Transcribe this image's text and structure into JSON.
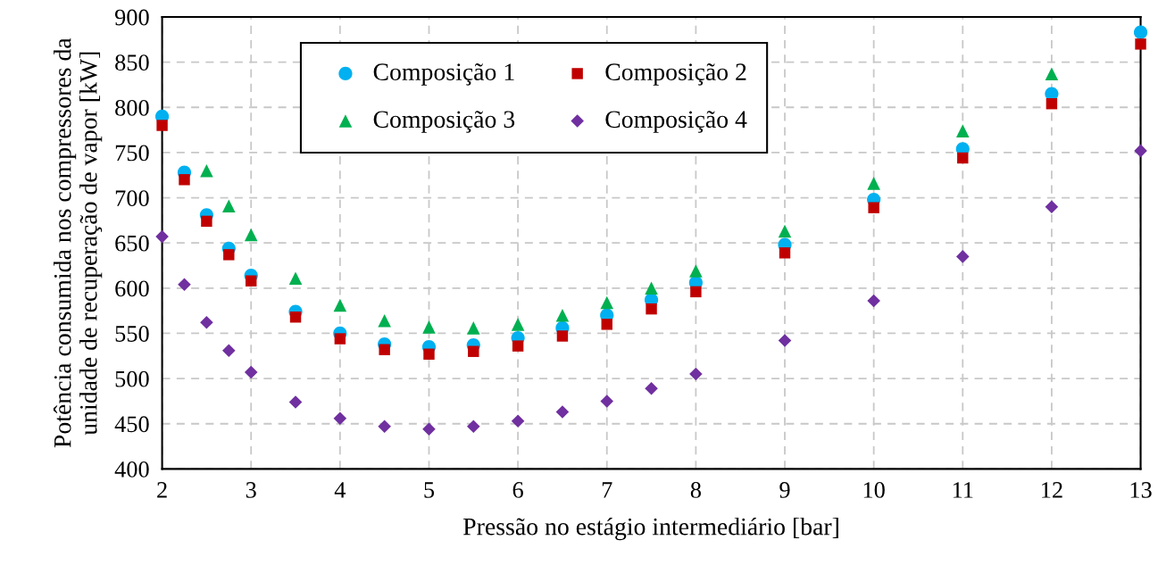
{
  "chart_data": {
    "type": "scatter",
    "xlabel": "Pressão no estágio intermediário [bar]",
    "ylabel": "Potência consumida nos compressores da\nunidade de recuperação de vapor [kW]",
    "x": [
      2,
      2.25,
      2.5,
      2.75,
      3,
      3.5,
      4,
      4.5,
      5,
      5.5,
      6,
      6.5,
      7,
      7.5,
      8,
      9,
      10,
      11,
      12,
      13
    ],
    "series": [
      {
        "name": "Composição 1",
        "color": "#00b0f0",
        "marker": "circle",
        "values": [
          790,
          728,
          681,
          644,
          614,
          574,
          550,
          538,
          535,
          537,
          545,
          556,
          570,
          587,
          606,
          648,
          698,
          754,
          815,
          883
        ]
      },
      {
        "name": "Composição 2",
        "color": "#c00000",
        "marker": "square",
        "values": [
          780,
          720,
          674,
          637,
          608,
          568,
          544,
          532,
          527,
          530,
          536,
          547,
          560,
          577,
          596,
          639,
          689,
          744,
          804,
          870
        ]
      },
      {
        "name": "Composição 3",
        "color": "#00b050",
        "marker": "triangle",
        "values": [
          null,
          null,
          730,
          691,
          659,
          611,
          581,
          564,
          557,
          556,
          560,
          570,
          584,
          600,
          619,
          663,
          716,
          774,
          837,
          null
        ]
      },
      {
        "name": "Composição 4",
        "color": "#7030a0",
        "marker": "diamond",
        "values": [
          657,
          604,
          562,
          531,
          507,
          474,
          456,
          447,
          444,
          447,
          453,
          463,
          475,
          489,
          505,
          542,
          586,
          635,
          690,
          752
        ]
      }
    ],
    "xlim": [
      2,
      13
    ],
    "xticks": [
      2,
      3,
      4,
      5,
      6,
      7,
      8,
      9,
      10,
      11,
      12,
      13
    ],
    "ylim": [
      400,
      900
    ],
    "yticks": [
      400,
      450,
      500,
      550,
      600,
      650,
      700,
      750,
      800,
      850,
      900
    ],
    "grid": true,
    "legend": "top"
  }
}
